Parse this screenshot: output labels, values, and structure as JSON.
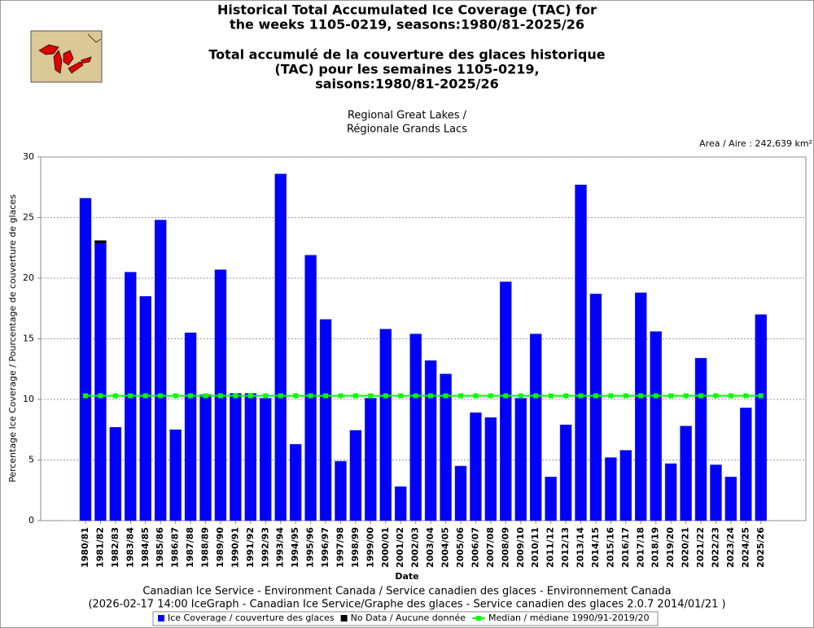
{
  "chart_data": {
    "type": "bar",
    "title": [
      "Historical Total Accumulated Ice Coverage (TAC) for",
      "the weeks 1105-0219, seasons:1980/81-2025/26"
    ],
    "title_fr": [
      "Total accumulé de la couverture des glaces historique",
      "(TAC) pour les semaines 1105-0219,",
      "saisons:1980/81-2025/26"
    ],
    "subtitle": [
      "Regional Great Lakes /",
      "Régionale Grands Lacs"
    ],
    "area_label": "Area / Aire : 242,639 km²",
    "x_label": "Date",
    "y_label": "Percentage Ice Coverage / Pourcentage de couverture de glaces",
    "footer": [
      "Canadian Ice Service - Environment Canada / Service canadien des glaces - Environnement Canada",
      "(2026-02-17 14:00 IceGraph - Canadian Ice Service/Graphe des glaces - Service canadien des glaces 2.0.7 2014/01/21 )"
    ],
    "categories": [
      "1980/81",
      "1981/82",
      "1982/83",
      "1983/84",
      "1984/85",
      "1985/86",
      "1986/87",
      "1987/88",
      "1988/89",
      "1989/90",
      "1990/91",
      "1991/92",
      "1992/93",
      "1993/94",
      "1994/95",
      "1995/96",
      "1996/97",
      "1997/98",
      "1998/99",
      "1999/00",
      "2000/01",
      "2001/02",
      "2002/03",
      "2003/04",
      "2004/05",
      "2005/06",
      "2006/07",
      "2007/08",
      "2008/09",
      "2009/10",
      "2010/11",
      "2011/12",
      "2012/13",
      "2013/14",
      "2014/15",
      "2015/16",
      "2016/17",
      "2017/18",
      "2018/19",
      "2019/20",
      "2020/21",
      "2021/22",
      "2022/23",
      "2023/24",
      "2024/25",
      "2025/26"
    ],
    "series": [
      {
        "name": "Ice Coverage / couverture des glaces",
        "color": "#0000ff",
        "stacked": true,
        "values": [
          26.6,
          22.9,
          7.7,
          20.5,
          18.5,
          24.8,
          7.5,
          15.5,
          10.4,
          20.7,
          10.5,
          10.5,
          10.1,
          28.6,
          6.3,
          21.9,
          16.6,
          4.9,
          7.45,
          10.1,
          15.8,
          2.8,
          15.4,
          13.2,
          12.1,
          4.5,
          8.9,
          8.5,
          19.7,
          10.1,
          15.4,
          3.6,
          7.9,
          27.7,
          18.7,
          5.2,
          5.8,
          18.8,
          15.6,
          4.7,
          7.8,
          13.4,
          4.6,
          3.6,
          9.3,
          17.0
        ]
      },
      {
        "name": "No Data / Aucune donnée",
        "color": "#000000",
        "stacked": true,
        "values": [
          0,
          0.2,
          0,
          0,
          0,
          0,
          0,
          0,
          0,
          0,
          0,
          0,
          0,
          0,
          0,
          0,
          0,
          0,
          0,
          0,
          0,
          0,
          0,
          0,
          0,
          0,
          0,
          0,
          0,
          0,
          0,
          0,
          0,
          0,
          0,
          0,
          0,
          0,
          0,
          0,
          0,
          0,
          0,
          0,
          0,
          0
        ]
      },
      {
        "name": "Median / médiane 1990/91-2019/20",
        "color": "#00ff00",
        "type": "line",
        "values": [
          10.3,
          10.3,
          10.3,
          10.3,
          10.3,
          10.3,
          10.3,
          10.3,
          10.3,
          10.3,
          10.3,
          10.3,
          10.3,
          10.3,
          10.3,
          10.3,
          10.3,
          10.3,
          10.3,
          10.3,
          10.3,
          10.3,
          10.3,
          10.3,
          10.3,
          10.3,
          10.3,
          10.3,
          10.3,
          10.3,
          10.3,
          10.3,
          10.3,
          10.3,
          10.3,
          10.3,
          10.3,
          10.3,
          10.3,
          10.3,
          10.3,
          10.3,
          10.3,
          10.3,
          10.3,
          10.3
        ]
      }
    ],
    "ylim": [
      0,
      30
    ],
    "yticks": [
      0,
      5,
      10,
      15,
      20,
      25,
      30
    ],
    "grid": true
  }
}
